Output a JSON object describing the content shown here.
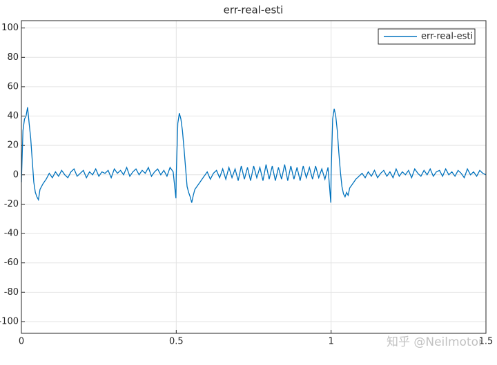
{
  "chart_data": {
    "type": "line",
    "title": "err-real-esti",
    "x": [
      0,
      0.005,
      0.01,
      0.015,
      0.02,
      0.025,
      0.03,
      0.035,
      0.04,
      0.045,
      0.05,
      0.055,
      0.06,
      0.07,
      0.08,
      0.09,
      0.1,
      0.11,
      0.12,
      0.13,
      0.14,
      0.15,
      0.16,
      0.17,
      0.18,
      0.19,
      0.2,
      0.21,
      0.22,
      0.23,
      0.24,
      0.25,
      0.26,
      0.27,
      0.28,
      0.29,
      0.3,
      0.31,
      0.32,
      0.33,
      0.34,
      0.35,
      0.36,
      0.37,
      0.38,
      0.39,
      0.4,
      0.41,
      0.42,
      0.43,
      0.44,
      0.45,
      0.46,
      0.47,
      0.48,
      0.49,
      0.499,
      0.5,
      0.505,
      0.51,
      0.515,
      0.52,
      0.525,
      0.53,
      0.535,
      0.54,
      0.545,
      0.55,
      0.555,
      0.56,
      0.57,
      0.58,
      0.59,
      0.6,
      0.61,
      0.62,
      0.63,
      0.64,
      0.65,
      0.66,
      0.67,
      0.68,
      0.69,
      0.7,
      0.71,
      0.72,
      0.73,
      0.74,
      0.75,
      0.76,
      0.77,
      0.78,
      0.79,
      0.8,
      0.81,
      0.82,
      0.83,
      0.84,
      0.85,
      0.86,
      0.87,
      0.88,
      0.89,
      0.9,
      0.91,
      0.92,
      0.93,
      0.94,
      0.95,
      0.96,
      0.97,
      0.98,
      0.99,
      0.999,
      1,
      1.005,
      1.01,
      1.015,
      1.02,
      1.025,
      1.03,
      1.035,
      1.04,
      1.045,
      1.05,
      1.055,
      1.06,
      1.07,
      1.08,
      1.09,
      1.1,
      1.11,
      1.12,
      1.13,
      1.14,
      1.15,
      1.16,
      1.17,
      1.18,
      1.19,
      1.2,
      1.21,
      1.22,
      1.23,
      1.24,
      1.25,
      1.26,
      1.27,
      1.28,
      1.29,
      1.3,
      1.31,
      1.32,
      1.33,
      1.34,
      1.35,
      1.36,
      1.37,
      1.38,
      1.39,
      1.4,
      1.41,
      1.42,
      1.43,
      1.44,
      1.45,
      1.46,
      1.47,
      1.48,
      1.49,
      1.5
    ],
    "series": [
      {
        "name": "err-real-esti",
        "color": "#0072bd",
        "values": [
          -5,
          30,
          38,
          40,
          46,
          35,
          25,
          10,
          -5,
          -12,
          -15,
          -17,
          -10,
          -6,
          -3,
          1,
          -2,
          2,
          -1,
          3,
          0,
          -2,
          2,
          4,
          -1,
          1,
          3,
          -2,
          2,
          0,
          4,
          -1,
          2,
          1,
          3,
          -2,
          4,
          1,
          3,
          0,
          5,
          -1,
          2,
          4,
          0,
          3,
          1,
          5,
          -1,
          2,
          4,
          0,
          3,
          -1,
          5,
          2,
          -16,
          0,
          35,
          42,
          38,
          30,
          18,
          5,
          -8,
          -12,
          -15,
          -19,
          -14,
          -10,
          -7,
          -4,
          -1,
          2,
          -3,
          1,
          3,
          -2,
          4,
          -3,
          5,
          -2,
          4,
          -4,
          6,
          -3,
          5,
          -4,
          6,
          -2,
          5,
          -4,
          7,
          -3,
          6,
          -4,
          5,
          -3,
          7,
          -4,
          6,
          -3,
          5,
          -4,
          6,
          -2,
          5,
          -3,
          6,
          -2,
          4,
          -3,
          5,
          -19,
          0,
          38,
          45,
          40,
          30,
          15,
          2,
          -8,
          -13,
          -15,
          -12,
          -14,
          -9,
          -6,
          -3,
          -1,
          1,
          -2,
          2,
          -1,
          3,
          -2,
          1,
          3,
          -1,
          2,
          -2,
          4,
          -1,
          2,
          0,
          3,
          -2,
          4,
          1,
          -1,
          3,
          0,
          4,
          -1,
          2,
          3,
          -1,
          4,
          0,
          2,
          -1,
          3,
          1,
          -2,
          4,
          0,
          2,
          -1,
          3,
          1,
          0
        ]
      }
    ],
    "xlim": [
      0,
      1.5
    ],
    "xticks": [
      0,
      0.5,
      1,
      1.5
    ],
    "ylim": [
      -108,
      105
    ],
    "yticks": [
      -100,
      -80,
      -60,
      -40,
      -20,
      0,
      20,
      40,
      60,
      80,
      100
    ],
    "grid": true,
    "legend": "upper right",
    "watermark": "知乎 @Neilmotor"
  }
}
